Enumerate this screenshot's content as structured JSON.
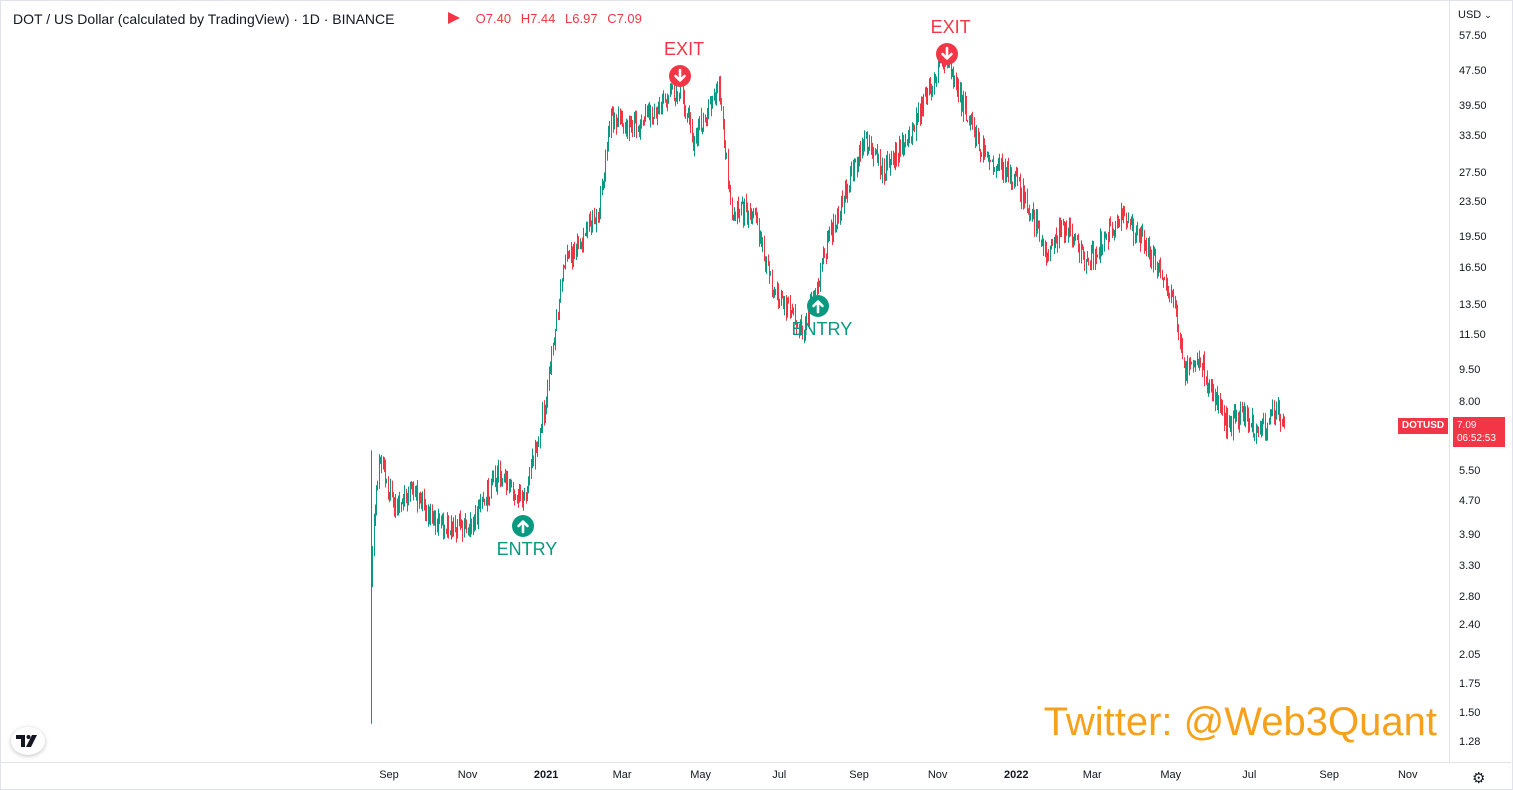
{
  "header": {
    "title": "DOT / US Dollar (calculated by TradingView) · 1D · BINANCE",
    "ohlc": [
      {
        "key": "O",
        "value": "7.40"
      },
      {
        "key": "H",
        "value": "7.44"
      },
      {
        "key": "L",
        "value": "6.97"
      },
      {
        "key": "C",
        "value": "7.09"
      }
    ],
    "currency": "USD"
  },
  "price_tag": {
    "symbol": "DOTUSD",
    "price": "7.09",
    "countdown": "06:52:53"
  },
  "watermark": "Twitter: @Web3Quant",
  "colors": {
    "up": "#089981",
    "down": "#f23645",
    "watermark": "#f7a11a",
    "grid": "#e0e3eb"
  },
  "signals": [
    {
      "type": "exit",
      "label": "EXIT",
      "date": "2021-04-15",
      "price": 46.0
    },
    {
      "type": "entry",
      "label": "ENTRY",
      "date": "2020-12-14",
      "price": 4.6
    },
    {
      "type": "exit",
      "label": "EXIT",
      "date": "2021-11-08",
      "price": 52.0
    },
    {
      "type": "entry",
      "label": "ENTRY",
      "date": "2021-07-31",
      "price": 15.0
    }
  ],
  "chart_data": {
    "type": "candlestick",
    "title": "DOT / US Dollar (calculated by TradingView) · 1D · BINANCE",
    "y_scale": "log",
    "ylim": [
      1.2,
      62
    ],
    "yticks": [
      "57.50",
      "47.50",
      "39.50",
      "33.50",
      "27.50",
      "23.50",
      "19.50",
      "16.50",
      "13.50",
      "11.50",
      "9.50",
      "8.00",
      "5.50",
      "4.70",
      "3.90",
      "3.30",
      "2.80",
      "2.40",
      "2.05",
      "1.75",
      "1.50",
      "1.28"
    ],
    "xlim": [
      "2020-07-15",
      "2022-12-15"
    ],
    "xticks": [
      {
        "label": "Sep",
        "date": "2020-09-01"
      },
      {
        "label": "Nov",
        "date": "2020-11-01"
      },
      {
        "label": "2021",
        "date": "2021-01-01",
        "bold": true
      },
      {
        "label": "Mar",
        "date": "2021-03-01"
      },
      {
        "label": "May",
        "date": "2021-05-01"
      },
      {
        "label": "Jul",
        "date": "2021-07-01"
      },
      {
        "label": "Sep",
        "date": "2021-09-01"
      },
      {
        "label": "Nov",
        "date": "2021-11-01"
      },
      {
        "label": "2022",
        "date": "2022-01-01",
        "bold": true
      },
      {
        "label": "Mar",
        "date": "2022-03-01"
      },
      {
        "label": "May",
        "date": "2022-05-01"
      },
      {
        "label": "Jul",
        "date": "2022-07-01"
      },
      {
        "label": "Sep",
        "date": "2022-09-01"
      },
      {
        "label": "Nov",
        "date": "2022-11-01"
      }
    ],
    "series_start": "2020-08-18",
    "close_anchors": [
      {
        "date": "2020-08-18",
        "close": 2.9
      },
      {
        "date": "2020-08-20",
        "close": 4.3
      },
      {
        "date": "2020-08-25",
        "close": 6.0
      },
      {
        "date": "2020-09-05",
        "close": 4.5
      },
      {
        "date": "2020-09-20",
        "close": 5.0
      },
      {
        "date": "2020-10-05",
        "close": 4.2
      },
      {
        "date": "2020-11-01",
        "close": 4.0
      },
      {
        "date": "2020-11-25",
        "close": 5.5
      },
      {
        "date": "2020-12-15",
        "close": 4.7
      },
      {
        "date": "2020-12-31",
        "close": 8.0
      },
      {
        "date": "2021-01-15",
        "close": 17.0
      },
      {
        "date": "2021-02-10",
        "close": 22.0
      },
      {
        "date": "2021-02-20",
        "close": 37.0
      },
      {
        "date": "2021-03-15",
        "close": 36.0
      },
      {
        "date": "2021-04-15",
        "close": 44.0
      },
      {
        "date": "2021-04-25",
        "close": 33.0
      },
      {
        "date": "2021-05-15",
        "close": 44.0
      },
      {
        "date": "2021-05-25",
        "close": 22.0
      },
      {
        "date": "2021-06-10",
        "close": 23.0
      },
      {
        "date": "2021-06-25",
        "close": 15.0
      },
      {
        "date": "2021-07-20",
        "close": 12.0
      },
      {
        "date": "2021-08-10",
        "close": 20.0
      },
      {
        "date": "2021-09-05",
        "close": 33.0
      },
      {
        "date": "2021-09-20",
        "close": 28.0
      },
      {
        "date": "2021-10-10",
        "close": 34.0
      },
      {
        "date": "2021-11-05",
        "close": 52.0
      },
      {
        "date": "2021-11-20",
        "close": 40.0
      },
      {
        "date": "2021-12-10",
        "close": 29.0
      },
      {
        "date": "2021-12-31",
        "close": 27.0
      },
      {
        "date": "2022-01-25",
        "close": 18.0
      },
      {
        "date": "2022-02-10",
        "close": 21.0
      },
      {
        "date": "2022-02-25",
        "close": 17.0
      },
      {
        "date": "2022-03-25",
        "close": 22.0
      },
      {
        "date": "2022-04-15",
        "close": 18.0
      },
      {
        "date": "2022-05-05",
        "close": 13.0
      },
      {
        "date": "2022-05-12",
        "close": 9.5
      },
      {
        "date": "2022-05-25",
        "close": 9.8
      },
      {
        "date": "2022-06-15",
        "close": 7.0
      },
      {
        "date": "2022-06-25",
        "close": 7.6
      },
      {
        "date": "2022-07-10",
        "close": 6.8
      },
      {
        "date": "2022-07-20",
        "close": 7.8
      },
      {
        "date": "2022-07-28",
        "close": 7.09
      }
    ]
  }
}
